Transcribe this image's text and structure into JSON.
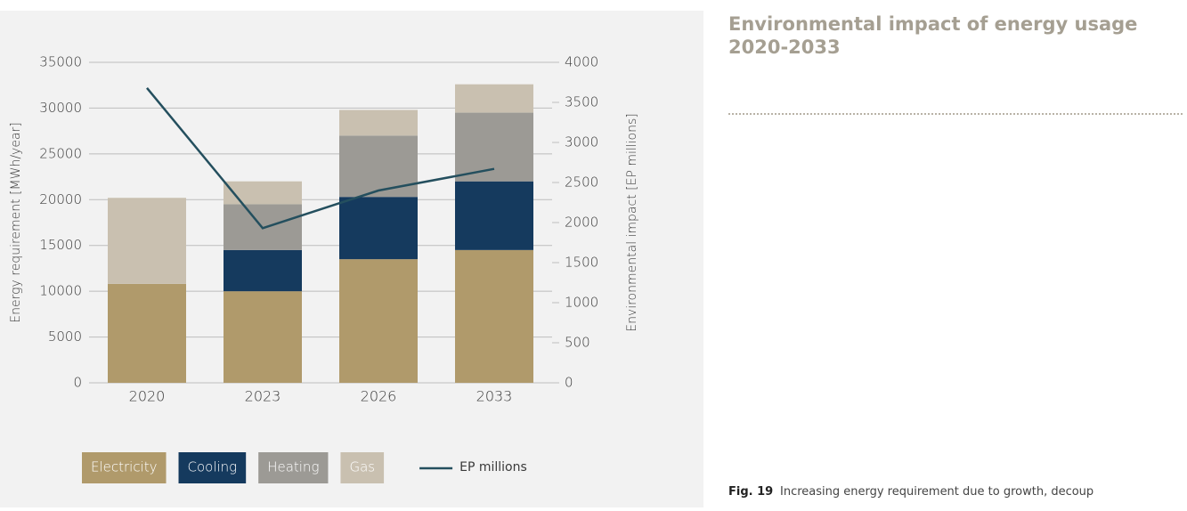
{
  "chart_data": {
    "type": "bar",
    "stacked": true,
    "title": "Environmental impact of energy usage 2020-2033",
    "y_label": "Energy requirement [MWh/year]",
    "y2_label": "Environmental impact [EP millions]",
    "categories": [
      "2020",
      "2023",
      "2026",
      "2033"
    ],
    "series": [
      {
        "name": "Electricity",
        "color": "#b09a6b",
        "values": [
          10800,
          10000,
          13500,
          14500
        ]
      },
      {
        "name": "Cooling",
        "color": "#153a5e",
        "values": [
          0,
          4500,
          6800,
          7500
        ]
      },
      {
        "name": "Heating",
        "color": "#9c9a95",
        "values": [
          0,
          5000,
          6700,
          7500
        ]
      },
      {
        "name": "Gas",
        "color": "#c9c0b0",
        "values": [
          9400,
          2500,
          2800,
          3100
        ]
      },
      {
        "name": "EP millions",
        "type": "line",
        "axis": "y2",
        "color": "#244f5e",
        "values": [
          3680,
          1930,
          2400,
          2670
        ]
      }
    ],
    "ylim": [
      0,
      35000
    ],
    "yticks": [
      0,
      5000,
      10000,
      15000,
      20000,
      25000,
      30000,
      35000
    ],
    "y2lim": [
      0,
      4000
    ],
    "y2ticks": [
      0,
      500,
      1000,
      1500,
      2000,
      2500,
      3000,
      3500,
      4000
    ],
    "grid": true,
    "legend": "bottom"
  },
  "caption": {
    "label": "Fig. 19",
    "text": "Increasing energy requirement due to growth, decoup"
  }
}
